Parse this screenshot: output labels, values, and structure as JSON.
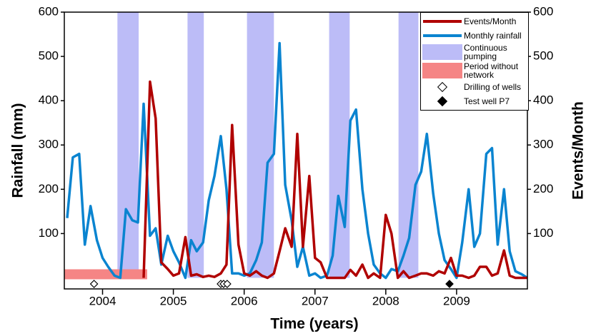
{
  "chart_data": {
    "type": "line",
    "xlabel": "Time (years)",
    "ylabel": "Rainfall (mm)",
    "y2label": "Events/Month",
    "xlim": [
      2003.46,
      2010.0
    ],
    "xticks": [
      2004,
      2005,
      2006,
      2007,
      2008,
      2009
    ],
    "ylim": [
      -25,
      600
    ],
    "yticks": [
      100,
      200,
      300,
      400,
      500,
      600
    ],
    "y2lim": [
      -25,
      600
    ],
    "y2ticks": [
      100,
      200,
      300,
      400,
      500,
      600
    ],
    "x": [
      2003.5,
      2003.58,
      2003.67,
      2003.75,
      2003.83,
      2003.92,
      2004,
      2004.08,
      2004.17,
      2004.25,
      2004.33,
      2004.42,
      2004.5,
      2004.58,
      2004.67,
      2004.75,
      2004.83,
      2004.92,
      2005,
      2005.08,
      2005.17,
      2005.25,
      2005.33,
      2005.42,
      2005.5,
      2005.58,
      2005.67,
      2005.75,
      2005.83,
      2005.92,
      2006,
      2006.08,
      2006.17,
      2006.25,
      2006.33,
      2006.42,
      2006.5,
      2006.58,
      2006.67,
      2006.75,
      2006.83,
      2006.92,
      2007,
      2007.08,
      2007.17,
      2007.25,
      2007.33,
      2007.42,
      2007.5,
      2007.58,
      2007.67,
      2007.75,
      2007.83,
      2007.92,
      2008,
      2008.08,
      2008.17,
      2008.25,
      2008.33,
      2008.42,
      2008.5,
      2008.58,
      2008.67,
      2008.75,
      2008.83,
      2008.92,
      2009,
      2009.08,
      2009.17,
      2009.25,
      2009.33,
      2009.42,
      2009.5,
      2009.58,
      2009.67,
      2009.75,
      2009.83,
      2009.92,
      2010
    ],
    "series": [
      {
        "name": "Events/Month",
        "color": "#b00000",
        "axis": "y2",
        "values": [
          null,
          null,
          null,
          null,
          null,
          null,
          null,
          null,
          null,
          null,
          null,
          null,
          null,
          0,
          443,
          360,
          35,
          20,
          5,
          10,
          92,
          5,
          8,
          2,
          5,
          2,
          10,
          30,
          345,
          75,
          10,
          5,
          15,
          5,
          0,
          10,
          60,
          112,
          70,
          325,
          70,
          230,
          45,
          35,
          0,
          0,
          0,
          0,
          18,
          5,
          30,
          0,
          10,
          0,
          142,
          100,
          0,
          15,
          0,
          5,
          10,
          10,
          5,
          15,
          10,
          45,
          5,
          5,
          0,
          5,
          25,
          25,
          5,
          10,
          62,
          5,
          0,
          0,
          0
        ]
      },
      {
        "name": "Monthly rainfall",
        "color": "#0a84d0",
        "values": [
          135,
          272,
          280,
          75,
          162,
          85,
          45,
          25,
          5,
          0,
          155,
          130,
          125,
          393,
          95,
          112,
          30,
          95,
          60,
          35,
          0,
          85,
          60,
          80,
          175,
          230,
          320,
          200,
          10,
          10,
          5,
          10,
          40,
          80,
          260,
          280,
          530,
          210,
          130,
          25,
          70,
          5,
          10,
          0,
          5,
          50,
          185,
          115,
          355,
          380,
          200,
          100,
          30,
          10,
          0,
          20,
          15,
          50,
          90,
          210,
          240,
          325,
          190,
          100,
          40,
          20,
          0,
          80,
          200,
          70,
          100,
          280,
          293,
          75,
          200,
          60,
          15,
          8,
          0
        ]
      }
    ],
    "bands": {
      "name": "Continuous pumping",
      "color": "#bcbcf7",
      "ranges": [
        [
          2004.21,
          2004.51
        ],
        [
          2005.2,
          2005.43
        ],
        [
          2006.04,
          2006.42
        ],
        [
          2007.2,
          2007.49
        ],
        [
          2008.18,
          2008.46
        ]
      ]
    },
    "period": {
      "name": "Period without network",
      "color": "#f58585",
      "range": [
        2003.46,
        2004.63
      ]
    },
    "markers": [
      {
        "name": "Drilling of wells",
        "filled": false,
        "x": [
          2003.88,
          2005.67,
          2005.71,
          2005.76
        ]
      },
      {
        "name": "Test well P7",
        "filled": true,
        "x": [
          2008.9
        ]
      }
    ]
  }
}
